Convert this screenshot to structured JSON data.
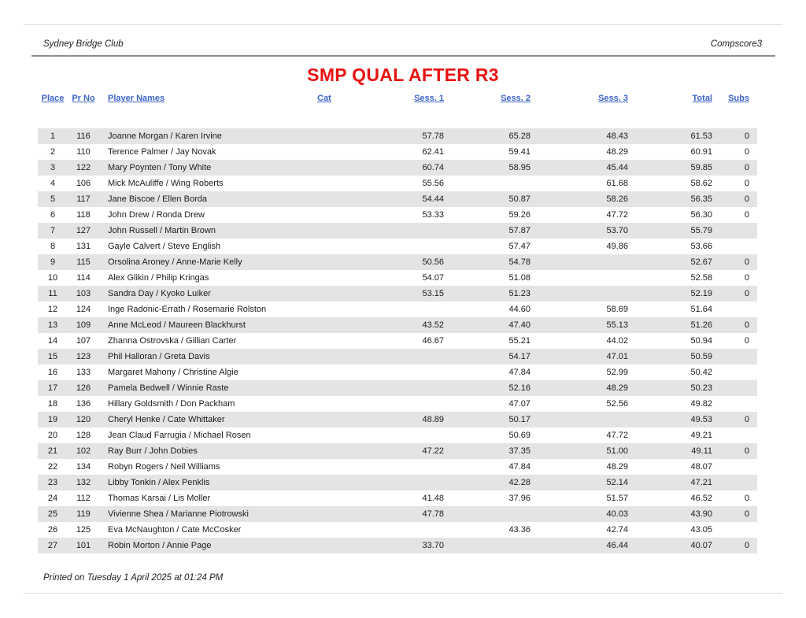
{
  "page": {
    "club_name": "Sydney Bridge Club",
    "app_name": "Compscore3",
    "title": "SMP QUAL AFTER R3",
    "footer_note": "Printed on Tuesday 1 April 2025 at 01:24 PM"
  },
  "colors": {
    "title_red": "#E81212",
    "header_link_blue": "#3E64C8",
    "row_alt_gray": "#E4E4E4",
    "divider_gray": "#8E8E8E"
  },
  "table": {
    "headers": [
      "Place",
      "Pr No",
      "Player Names",
      "Cat",
      "Sess. 1",
      "Sess. 2",
      "Sess. 3",
      "Total",
      "Subs"
    ],
    "rows": [
      {
        "place": "1",
        "pr": "116",
        "names": "Joanne Morgan / Karen Irvine",
        "cat": "",
        "s1": "57.78",
        "s2": "65.28",
        "s3": "48.43",
        "total": "61.53",
        "subs": "0"
      },
      {
        "place": "2",
        "pr": "110",
        "names": "Terence Palmer / Jay Novak",
        "cat": "",
        "s1": "62.41",
        "s2": "59.41",
        "s3": "48.29",
        "total": "60.91",
        "subs": "0"
      },
      {
        "place": "3",
        "pr": "122",
        "names": "Mary Poynten / Tony White",
        "cat": "",
        "s1": "60.74",
        "s2": "58.95",
        "s3": "45.44",
        "total": "59.85",
        "subs": "0"
      },
      {
        "place": "4",
        "pr": "106",
        "names": "Mick McAuliffe / Wing Roberts",
        "cat": "",
        "s1": "55.56",
        "s2": "",
        "s3": "61.68",
        "total": "58.62",
        "subs": "0"
      },
      {
        "place": "5",
        "pr": "117",
        "names": "Jane Biscoe / Ellen Borda",
        "cat": "",
        "s1": "54.44",
        "s2": "50.87",
        "s3": "58.26",
        "total": "56.35",
        "subs": "0"
      },
      {
        "place": "6",
        "pr": "118",
        "names": "John Drew / Ronda Drew",
        "cat": "",
        "s1": "53.33",
        "s2": "59.26",
        "s3": "47.72",
        "total": "56.30",
        "subs": "0"
      },
      {
        "place": "7",
        "pr": "127",
        "names": "John Russell / Martin Brown",
        "cat": "",
        "s1": "",
        "s2": "57.87",
        "s3": "53.70",
        "total": "55.79",
        "subs": ""
      },
      {
        "place": "8",
        "pr": "131",
        "names": "Gayle Calvert / Steve English",
        "cat": "",
        "s1": "",
        "s2": "57.47",
        "s3": "49.86",
        "total": "53.66",
        "subs": ""
      },
      {
        "place": "9",
        "pr": "115",
        "names": "Orsolina Aroney / Anne-Marie Kelly",
        "cat": "",
        "s1": "50.56",
        "s2": "54.78",
        "s3": "",
        "total": "52.67",
        "subs": "0"
      },
      {
        "place": "10",
        "pr": "114",
        "names": "Alex Glikin / Philip Kringas",
        "cat": "",
        "s1": "54.07",
        "s2": "51.08",
        "s3": "",
        "total": "52.58",
        "subs": "0"
      },
      {
        "place": "11",
        "pr": "103",
        "names": "Sandra Day / Kyoko Luiker",
        "cat": "",
        "s1": "53.15",
        "s2": "51.23",
        "s3": "",
        "total": "52.19",
        "subs": "0"
      },
      {
        "place": "12",
        "pr": "124",
        "names": "Inge Radonic-Errath / Rosemarie Rolston",
        "cat": "",
        "s1": "",
        "s2": "44.60",
        "s3": "58.69",
        "total": "51.64",
        "subs": ""
      },
      {
        "place": "13",
        "pr": "109",
        "names": "Anne McLeod / Maureen Blackhurst",
        "cat": "",
        "s1": "43.52",
        "s2": "47.40",
        "s3": "55.13",
        "total": "51.26",
        "subs": "0"
      },
      {
        "place": "14",
        "pr": "107",
        "names": "Zhanna Ostrovska / Gillian Carter",
        "cat": "",
        "s1": "46.67",
        "s2": "55.21",
        "s3": "44.02",
        "total": "50.94",
        "subs": "0"
      },
      {
        "place": "15",
        "pr": "123",
        "names": "Phil Halloran / Greta Davis",
        "cat": "",
        "s1": "",
        "s2": "54.17",
        "s3": "47.01",
        "total": "50.59",
        "subs": ""
      },
      {
        "place": "16",
        "pr": "133",
        "names": "Margaret Mahony / Christine Algie",
        "cat": "",
        "s1": "",
        "s2": "47.84",
        "s3": "52.99",
        "total": "50.42",
        "subs": ""
      },
      {
        "place": "17",
        "pr": "126",
        "names": "Pamela Bedwell / Winnie Raste",
        "cat": "",
        "s1": "",
        "s2": "52.16",
        "s3": "48.29",
        "total": "50.23",
        "subs": ""
      },
      {
        "place": "18",
        "pr": "136",
        "names": "Hillary Goldsmith / Don Packham",
        "cat": "",
        "s1": "",
        "s2": "47.07",
        "s3": "52.56",
        "total": "49.82",
        "subs": ""
      },
      {
        "place": "19",
        "pr": "120",
        "names": "Cheryl Henke / Cate Whittaker",
        "cat": "",
        "s1": "48.89",
        "s2": "50.17",
        "s3": "",
        "total": "49.53",
        "subs": "0"
      },
      {
        "place": "20",
        "pr": "128",
        "names": "Jean Claud Farrugia / Michael Rosen",
        "cat": "",
        "s1": "",
        "s2": "50.69",
        "s3": "47.72",
        "total": "49.21",
        "subs": ""
      },
      {
        "place": "21",
        "pr": "102",
        "names": "Ray Burr / John Dobies",
        "cat": "",
        "s1": "47.22",
        "s2": "37.35",
        "s3": "51.00",
        "total": "49.11",
        "subs": "0"
      },
      {
        "place": "22",
        "pr": "134",
        "names": "Robyn Rogers / Neil Williams",
        "cat": "",
        "s1": "",
        "s2": "47.84",
        "s3": "48.29",
        "total": "48.07",
        "subs": ""
      },
      {
        "place": "23",
        "pr": "132",
        "names": "Libby Tonkin / Alex Penklis",
        "cat": "",
        "s1": "",
        "s2": "42.28",
        "s3": "52.14",
        "total": "47.21",
        "subs": ""
      },
      {
        "place": "24",
        "pr": "112",
        "names": "Thomas Karsai / Lis Moller",
        "cat": "",
        "s1": "41.48",
        "s2": "37.96",
        "s3": "51.57",
        "total": "46.52",
        "subs": "0"
      },
      {
        "place": "25",
        "pr": "119",
        "names": "Vivienne Shea / Marianne Piotrowski",
        "cat": "",
        "s1": "47.78",
        "s2": "",
        "s3": "40.03",
        "total": "43.90",
        "subs": "0"
      },
      {
        "place": "26",
        "pr": "125",
        "names": "Eva McNaughton / Cate McCosker",
        "cat": "",
        "s1": "",
        "s2": "43.36",
        "s3": "42.74",
        "total": "43.05",
        "subs": ""
      },
      {
        "place": "27",
        "pr": "101",
        "names": "Robin Morton / Annie Page",
        "cat": "",
        "s1": "33.70",
        "s2": "",
        "s3": "46.44",
        "total": "40.07",
        "subs": "0"
      }
    ]
  }
}
